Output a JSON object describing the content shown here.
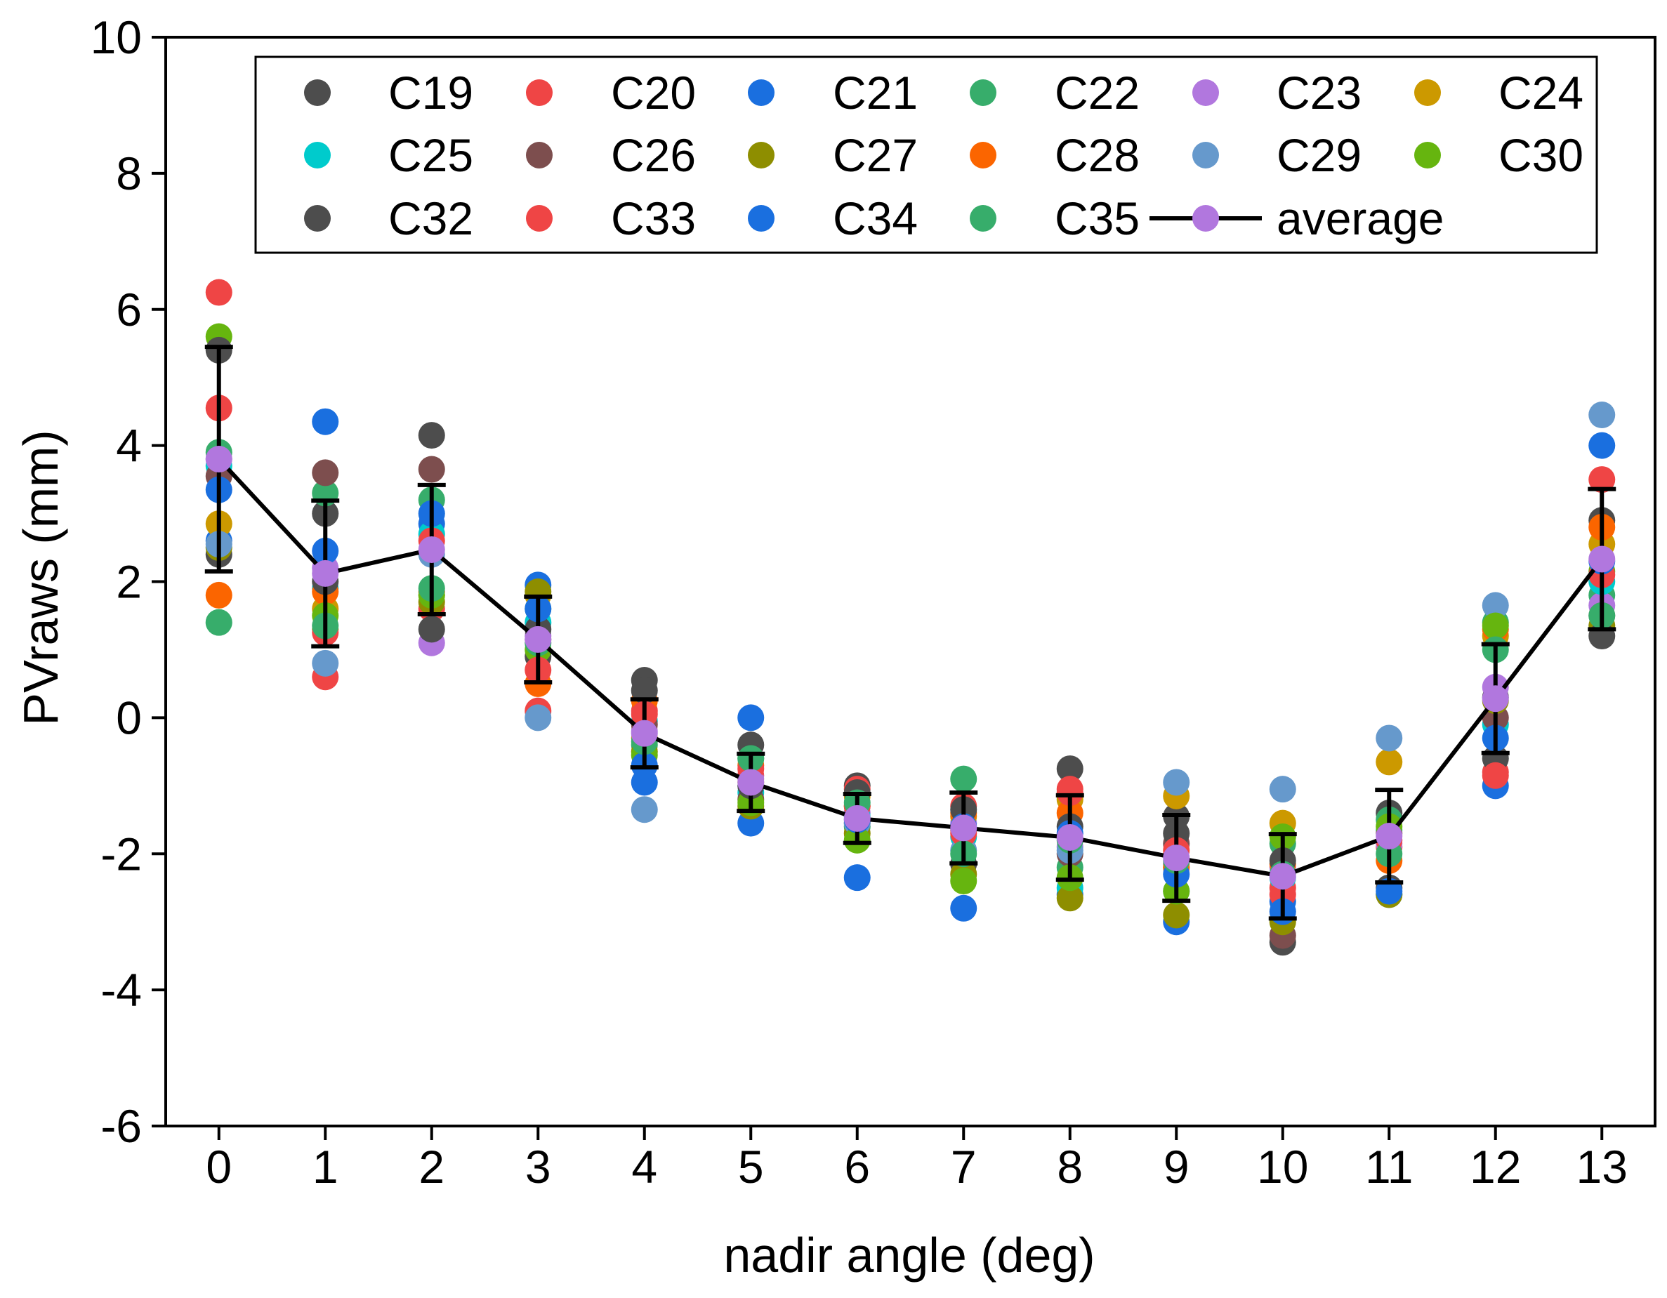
{
  "chart_data": {
    "type": "scatter",
    "title": "",
    "xlabel": "nadir angle (deg)",
    "ylabel": "PVraws (mm)",
    "xlim": [
      -0.5,
      13.5
    ],
    "ylim": [
      -6,
      10
    ],
    "x_ticks": [
      0,
      1,
      2,
      3,
      4,
      5,
      6,
      7,
      8,
      9,
      10,
      11,
      12,
      13
    ],
    "x_tick_labels": [
      "0",
      "1",
      "2",
      "3",
      "4",
      "5",
      "6",
      "7",
      "8",
      "9",
      "10",
      "11",
      "12",
      "13"
    ],
    "y_ticks": [
      -6,
      -4,
      -2,
      0,
      2,
      4,
      6,
      8,
      10
    ],
    "y_tick_labels": [
      "-6",
      "-4",
      "-2",
      "0",
      "2",
      "4",
      "6",
      "8",
      "10"
    ],
    "grid": false,
    "legend_position": "top",
    "x": [
      0,
      1,
      2,
      3,
      4,
      5,
      6,
      7,
      8,
      9,
      10,
      11,
      12,
      13
    ],
    "series": [
      {
        "name": "C19",
        "color": "#4d4d4d",
        "values": [
          2.4,
          3.0,
          4.15,
          0.9,
          0.55,
          -0.4,
          -1.0,
          -2.15,
          -0.75,
          -1.45,
          -3.3,
          -1.4,
          0.3,
          2.9
        ]
      },
      {
        "name": "C20",
        "color": "#ef4545",
        "values": [
          6.25,
          0.6,
          1.6,
          0.1,
          0.1,
          -0.85,
          -1.05,
          -1.3,
          -1.05,
          -2.15,
          -2.5,
          -1.9,
          -0.8,
          3.5
        ]
      },
      {
        "name": "C21",
        "color": "#1a6fdf",
        "values": [
          2.6,
          4.35,
          2.85,
          1.95,
          -0.95,
          -1.55,
          -2.35,
          -2.8,
          -2.6,
          -3.0,
          -2.7,
          -2.6,
          -1.0,
          4.0
        ]
      },
      {
        "name": "C22",
        "color": "#37ad6b",
        "values": [
          1.4,
          3.3,
          3.2,
          1.6,
          -0.4,
          -0.6,
          -1.6,
          -0.9,
          -2.2,
          -2.2,
          -1.85,
          -1.5,
          1.4,
          1.8
        ]
      },
      {
        "name": "C23",
        "color": "#b177de",
        "values": [
          3.8,
          2.2,
          1.1,
          1.2,
          -0.2,
          -0.9,
          -1.4,
          -1.55,
          -1.9,
          -2.15,
          -2.2,
          -1.85,
          0.45,
          1.65
        ]
      },
      {
        "name": "C24",
        "color": "#cc9900",
        "values": [
          2.85,
          1.6,
          1.8,
          1.8,
          -0.3,
          -0.95,
          -1.15,
          -1.45,
          -1.2,
          -1.15,
          -1.55,
          -0.65,
          1.2,
          2.55
        ]
      },
      {
        "name": "C25",
        "color": "#00cbcc",
        "values": [
          3.7,
          1.9,
          2.7,
          1.4,
          -0.05,
          -1.1,
          -1.45,
          -1.75,
          -2.5,
          -2.55,
          -2.35,
          -1.65,
          -0.1,
          2.0
        ]
      },
      {
        "name": "C26",
        "color": "#7d4e4e",
        "values": [
          3.55,
          3.6,
          3.65,
          1.15,
          -0.1,
          -1.2,
          -1.55,
          -1.65,
          -2.0,
          -1.85,
          -3.2,
          -1.7,
          0.0,
          1.5
        ]
      },
      {
        "name": "C27",
        "color": "#8e8e00",
        "values": [
          2.5,
          1.3,
          1.7,
          1.85,
          -0.5,
          -1.3,
          -1.7,
          -2.3,
          -2.65,
          -2.9,
          -3.0,
          -2.6,
          0.25,
          1.35
        ]
      },
      {
        "name": "C28",
        "color": "#fb6500",
        "values": [
          1.8,
          1.85,
          1.85,
          0.5,
          0.25,
          -0.7,
          -1.3,
          -1.4,
          -1.4,
          -2.2,
          -2.15,
          -2.1,
          1.3,
          2.8
        ]
      },
      {
        "name": "C29",
        "color": "#6699cc",
        "values": [
          2.55,
          0.8,
          2.4,
          0.0,
          -1.35,
          -1.0,
          -1.55,
          -1.95,
          -1.95,
          -0.95,
          -1.05,
          -0.3,
          1.65,
          4.45
        ]
      },
      {
        "name": "C30",
        "color": "#66b50f",
        "values": [
          5.6,
          1.5,
          1.8,
          1.0,
          -0.55,
          -1.25,
          -1.8,
          -2.4,
          -2.35,
          -2.55,
          -1.75,
          -1.6,
          1.35,
          2.15
        ]
      },
      {
        "name": "C32",
        "color": "#4d4d4d",
        "values": [
          5.4,
          2.0,
          1.3,
          1.3,
          0.4,
          -1.0,
          -1.1,
          -1.35,
          -1.6,
          -1.7,
          -2.1,
          -2.5,
          -0.6,
          1.2
        ]
      },
      {
        "name": "C33",
        "color": "#ef4545",
        "values": [
          4.55,
          1.25,
          2.6,
          0.7,
          0.05,
          -0.75,
          -1.3,
          -1.7,
          -1.1,
          -1.95,
          -2.6,
          -1.8,
          -0.85,
          2.1
        ]
      },
      {
        "name": "C34",
        "color": "#1a6fdf",
        "values": [
          3.35,
          2.45,
          3.0,
          1.6,
          -0.7,
          0.0,
          -1.5,
          -1.6,
          -1.7,
          -2.3,
          -2.85,
          -2.55,
          -0.3,
          2.3
        ]
      },
      {
        "name": "C35",
        "color": "#37ad6b",
        "values": [
          3.9,
          1.35,
          1.9,
          1.1,
          -0.35,
          -0.6,
          -1.25,
          -2.0,
          -1.8,
          -2.1,
          -2.3,
          -2.0,
          1.0,
          1.5
        ]
      }
    ],
    "average": {
      "name": "average",
      "line_color": "#000000",
      "marker_color": "#b177de",
      "values": [
        3.8,
        2.12,
        2.47,
        1.15,
        -0.23,
        -0.95,
        -1.48,
        -1.62,
        -1.76,
        -2.06,
        -2.33,
        -1.74,
        0.28,
        2.33
      ],
      "errors": [
        1.65,
        1.07,
        0.95,
        0.63,
        0.5,
        0.42,
        0.36,
        0.52,
        0.62,
        0.63,
        0.62,
        0.68,
        0.8,
        1.03
      ]
    }
  }
}
